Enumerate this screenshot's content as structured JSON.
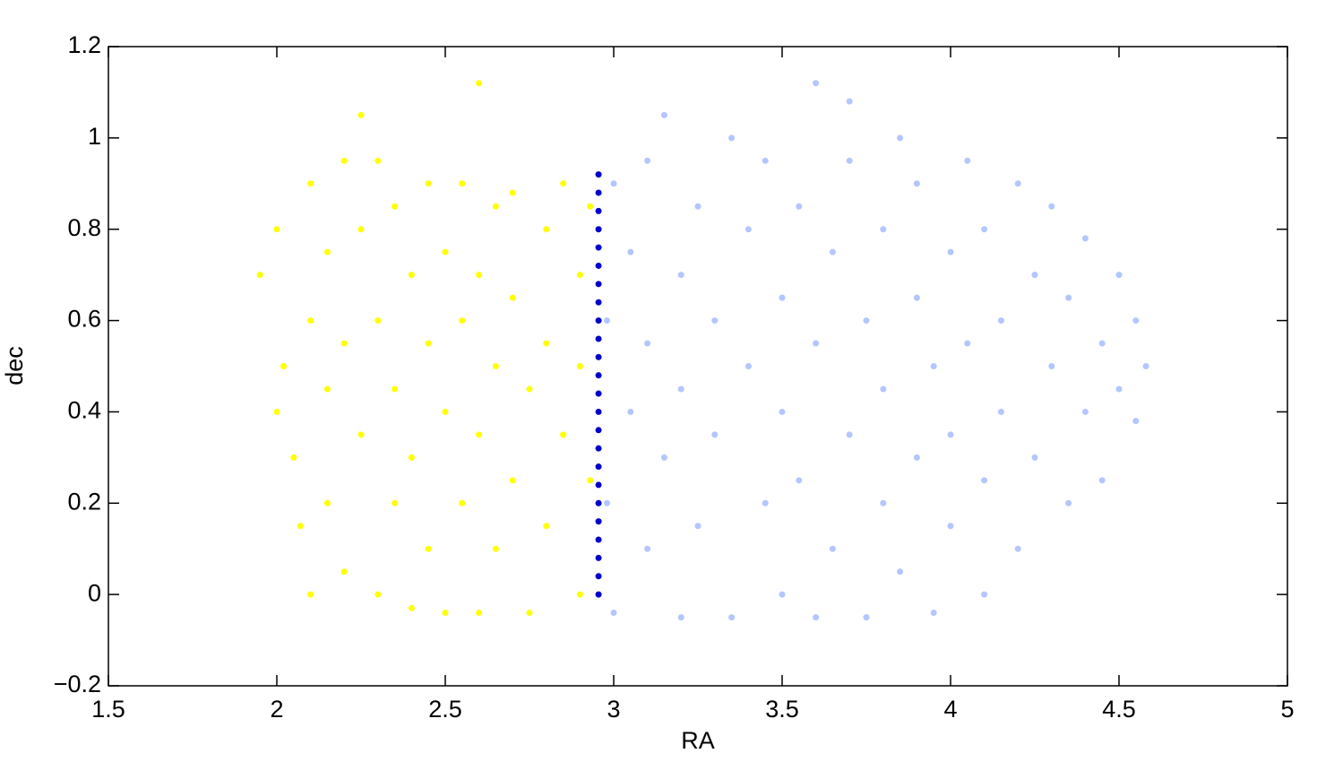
{
  "chart_data": {
    "type": "scatter",
    "xlabel": "RA",
    "ylabel": "dec",
    "xlim": [
      1.5,
      5
    ],
    "ylim": [
      -0.2,
      1.2
    ],
    "xticks": [
      1.5,
      2,
      2.5,
      3,
      3.5,
      4,
      4.5,
      5
    ],
    "yticks": [
      {
        "value": -0.2,
        "label": "−0.2"
      },
      0,
      0.2,
      0.4,
      0.6,
      0.8,
      1,
      1.2
    ],
    "grid": false,
    "series": [
      {
        "color": "#ffff00",
        "x": [
          1.95,
          2.0,
          2.02,
          2.0,
          2.05,
          2.07,
          2.1,
          2.1,
          2.1,
          2.15,
          2.15,
          2.15,
          2.2,
          2.2,
          2.2,
          2.25,
          2.25,
          2.25,
          2.3,
          2.3,
          2.3,
          2.35,
          2.35,
          2.35,
          2.4,
          2.4,
          2.4,
          2.45,
          2.45,
          2.45,
          2.5,
          2.5,
          2.5,
          2.55,
          2.55,
          2.55,
          2.6,
          2.6,
          2.6,
          2.6,
          2.65,
          2.65,
          2.65,
          2.7,
          2.7,
          2.7,
          2.75,
          2.75,
          2.8,
          2.8,
          2.8,
          2.85,
          2.85,
          2.9,
          2.9,
          2.9,
          2.93,
          2.93
        ],
        "values": [
          0.7,
          0.8,
          0.5,
          0.4,
          0.3,
          0.15,
          0.0,
          0.6,
          0.9,
          0.75,
          0.45,
          0.2,
          0.95,
          0.05,
          0.55,
          1.05,
          0.35,
          0.8,
          0.0,
          0.6,
          0.95,
          0.2,
          0.45,
          0.85,
          -0.03,
          0.7,
          0.3,
          0.9,
          0.1,
          0.55,
          -0.04,
          0.4,
          0.75,
          0.2,
          0.6,
          0.9,
          1.12,
          -0.04,
          0.35,
          0.7,
          0.85,
          0.1,
          0.5,
          0.25,
          0.65,
          0.88,
          -0.04,
          0.45,
          0.8,
          0.15,
          0.55,
          0.35,
          0.9,
          0.0,
          0.7,
          0.5,
          0.25,
          0.85
        ]
      },
      {
        "color": "#b3c6ff",
        "x": [
          2.98,
          2.98,
          3.0,
          3.0,
          3.05,
          3.05,
          3.1,
          3.1,
          3.1,
          3.15,
          3.15,
          3.2,
          3.2,
          3.2,
          3.25,
          3.25,
          3.3,
          3.3,
          3.35,
          3.35,
          3.4,
          3.4,
          3.45,
          3.45,
          3.5,
          3.5,
          3.5,
          3.55,
          3.55,
          3.6,
          3.6,
          3.6,
          3.65,
          3.65,
          3.7,
          3.7,
          3.7,
          3.75,
          3.75,
          3.8,
          3.8,
          3.8,
          3.85,
          3.85,
          3.9,
          3.9,
          3.9,
          3.95,
          3.95,
          4.0,
          4.0,
          4.0,
          4.05,
          4.05,
          4.1,
          4.1,
          4.1,
          4.15,
          4.15,
          4.2,
          4.2,
          4.25,
          4.25,
          4.3,
          4.3,
          4.35,
          4.35,
          4.4,
          4.4,
          4.45,
          4.45,
          4.5,
          4.5,
          4.55,
          4.58,
          4.55
        ],
        "values": [
          0.2,
          0.6,
          0.9,
          -0.04,
          0.4,
          0.75,
          0.1,
          0.95,
          0.55,
          0.3,
          1.05,
          -0.05,
          0.7,
          0.45,
          0.85,
          0.15,
          0.6,
          0.35,
          1.0,
          -0.05,
          0.5,
          0.8,
          0.2,
          0.95,
          0.65,
          0.0,
          0.4,
          0.85,
          0.25,
          1.12,
          -0.05,
          0.55,
          0.75,
          0.1,
          0.95,
          0.35,
          1.08,
          0.6,
          -0.05,
          0.8,
          0.2,
          0.45,
          1.0,
          0.05,
          0.65,
          0.3,
          0.9,
          -0.04,
          0.5,
          0.75,
          0.15,
          0.35,
          0.95,
          0.55,
          0.0,
          0.8,
          0.25,
          0.6,
          0.4,
          0.9,
          0.1,
          0.7,
          0.3,
          0.5,
          0.85,
          0.2,
          0.65,
          0.4,
          0.78,
          0.55,
          0.25,
          0.7,
          0.45,
          0.6,
          0.5,
          0.38
        ]
      },
      {
        "color": "#0000cc",
        "x": [
          2.955,
          2.955,
          2.955,
          2.955,
          2.955,
          2.955,
          2.955,
          2.955,
          2.955,
          2.955,
          2.955,
          2.955,
          2.955,
          2.955,
          2.955,
          2.955,
          2.955,
          2.955,
          2.955,
          2.955,
          2.955,
          2.955,
          2.955,
          2.955
        ],
        "values": [
          0.0,
          0.04,
          0.08,
          0.12,
          0.16,
          0.2,
          0.24,
          0.28,
          0.32,
          0.36,
          0.4,
          0.44,
          0.48,
          0.52,
          0.56,
          0.6,
          0.64,
          0.68,
          0.72,
          0.76,
          0.8,
          0.84,
          0.88,
          0.92
        ]
      }
    ]
  }
}
